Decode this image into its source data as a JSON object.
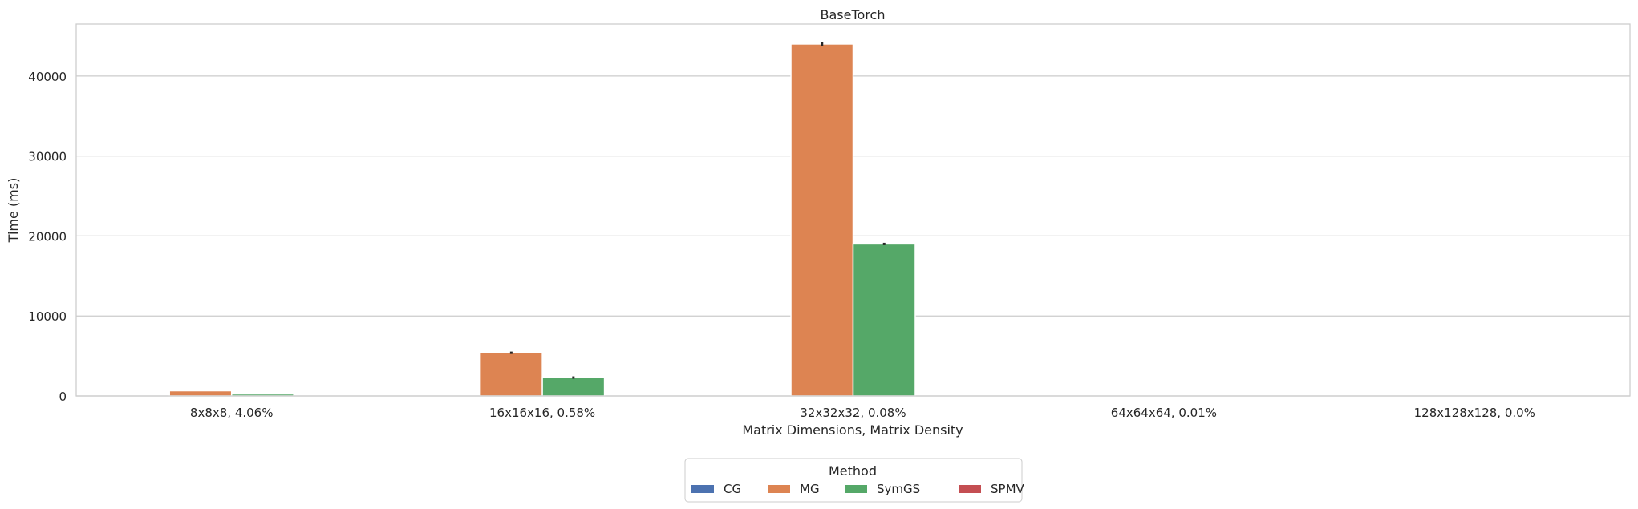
{
  "chart_data": {
    "type": "bar",
    "title": "BaseTorch",
    "xlabel": "Matrix Dimensions, Matrix Density",
    "ylabel": "Time (ms)",
    "categories": [
      "8x8x8, 4.06%",
      "16x16x16, 0.58%",
      "32x32x32, 0.08%",
      "64x64x64, 0.01%",
      "128x128x128, 0.0%"
    ],
    "ylim": [
      0,
      46500
    ],
    "yticks": [
      0,
      10000,
      20000,
      30000,
      40000
    ],
    "grid": true,
    "legend_title": "Method",
    "legend_position": "bottom-center",
    "series": [
      {
        "name": "CG",
        "color": "#4c72b0",
        "values": [
          0,
          0,
          0,
          0,
          0
        ]
      },
      {
        "name": "MG",
        "color": "#dd8452",
        "values": [
          650,
          5400,
          44000,
          0,
          0
        ],
        "errors": [
          0,
          150,
          250,
          0,
          0
        ]
      },
      {
        "name": "SymGS",
        "color": "#55a868",
        "values": [
          250,
          2300,
          19000,
          0,
          0
        ],
        "errors": [
          0,
          150,
          150,
          0,
          0
        ]
      },
      {
        "name": "SPMV",
        "color": "#c44e52",
        "values": [
          0,
          0,
          0,
          0,
          0
        ]
      }
    ]
  }
}
